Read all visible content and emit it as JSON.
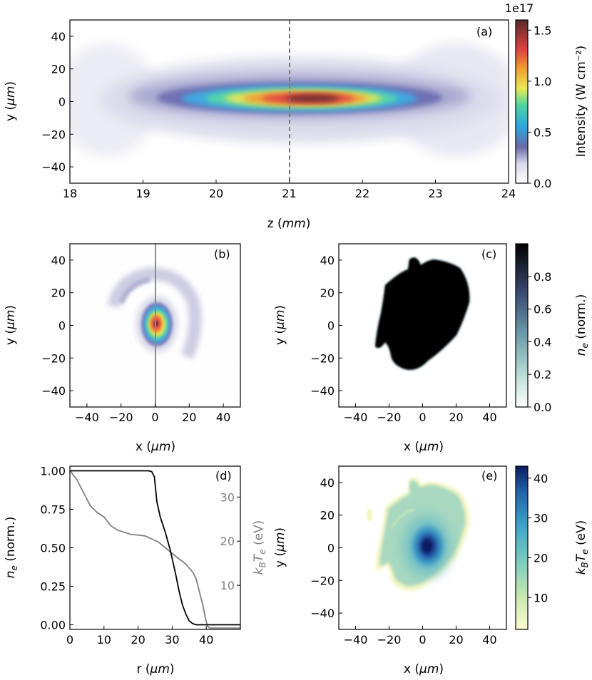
{
  "chart_data": [
    {
      "id": "a",
      "type": "heatmap",
      "panel_label": "(a)",
      "xlabel": "z",
      "xunit": "mm",
      "ylabel": "y",
      "yunit": "μm",
      "xlim": [
        18,
        24
      ],
      "ylim": [
        -50,
        50
      ],
      "xticks": [
        "18",
        "19",
        "20",
        "21",
        "22",
        "23",
        "24"
      ],
      "yticks": [
        "40",
        "20",
        "0",
        "−20",
        "−40"
      ],
      "marker_line_z": 21,
      "colorbar": {
        "label": "Intensity (W cm⁻²)",
        "exponent": "1e17",
        "range": [
          0,
          1.6
        ],
        "ticks": [
          "1.5",
          "1.0",
          "0.5",
          "0.0"
        ],
        "colors": [
          "#ffffff",
          "#6a6aa8",
          "#2aa8e0",
          "#4fd6a0",
          "#eaea50",
          "#f0a030",
          "#e04040",
          "#5a2a2a"
        ]
      },
      "peak": {
        "z": 21.25,
        "y": 0,
        "intensity": 1.55
      }
    },
    {
      "id": "b",
      "type": "heatmap",
      "panel_label": "(b)",
      "xlabel": "x",
      "xunit": "μm",
      "ylabel": "y",
      "yunit": "μm",
      "xlim": [
        -50,
        50
      ],
      "ylim": [
        -50,
        50
      ],
      "xticks": [
        "−40",
        "−20",
        "0",
        "20",
        "40"
      ],
      "yticks": [
        "40",
        "20",
        "0",
        "−20",
        "−40"
      ],
      "marker_line_x": 0,
      "peak": {
        "x": 1,
        "y": 0
      }
    },
    {
      "id": "c",
      "type": "heatmap",
      "panel_label": "(c)",
      "xlabel": "x",
      "xunit": "μm",
      "ylabel": "y",
      "yunit": "μm",
      "xlim": [
        -50,
        50
      ],
      "ylim": [
        -50,
        50
      ],
      "xticks": [
        "−40",
        "−20",
        "0",
        "20",
        "40"
      ],
      "yticks": [
        "40",
        "20",
        "0",
        "−20",
        "−40"
      ],
      "colorbar": {
        "label_main": "n",
        "label_sub": "e",
        "label_rest": " (norm.)",
        "range": [
          0,
          1
        ],
        "ticks": [
          "0.8",
          "0.6",
          "0.4",
          "0.2",
          "0.0"
        ],
        "colors": [
          "#ffffff",
          "#b8dcd6",
          "#6a9aa8",
          "#3a4a70",
          "#000000"
        ]
      }
    },
    {
      "id": "d",
      "type": "line",
      "panel_label": "(d)",
      "xlabel": "r",
      "xunit": "μm",
      "ylabel_main": "n",
      "ylabel_sub": "e",
      "ylabel_rest": " (norm.)",
      "ylabel2_main": "k",
      "ylabel2_sub": "B",
      "ylabel2_mid": "T",
      "ylabel2_sub2": "e",
      "ylabel2_rest": " (eV)",
      "xlim": [
        0,
        50
      ],
      "ylim": [
        -0.03,
        1.03
      ],
      "ylim2": [
        0,
        37
      ],
      "xticks": [
        "0",
        "10",
        "20",
        "30",
        "40"
      ],
      "yticks": [
        "1.00",
        "0.75",
        "0.50",
        "0.25",
        "0.00"
      ],
      "yticks2": [
        "30",
        "20",
        "10"
      ],
      "series": [
        {
          "name": "n_e",
          "color": "#000000",
          "axis": "left",
          "x": [
            0,
            23,
            24,
            24.8,
            25.5,
            26.5,
            28,
            29.5,
            31,
            32,
            33,
            34,
            35,
            36,
            37,
            39,
            41,
            50
          ],
          "y": [
            1.0,
            1.0,
            0.995,
            0.96,
            0.8,
            0.7,
            0.6,
            0.48,
            0.33,
            0.22,
            0.13,
            0.07,
            0.025,
            0.008,
            0.0,
            0.0,
            0.0,
            0.0
          ]
        },
        {
          "name": "k_BT_e",
          "color": "#808080",
          "axis": "right",
          "x": [
            0,
            2,
            4,
            6,
            8,
            10,
            12,
            14,
            16,
            18,
            20,
            22,
            24,
            26,
            28,
            30,
            32,
            34,
            36,
            37,
            38,
            39,
            39.5,
            40,
            40.5,
            41,
            50
          ],
          "y": [
            36,
            34,
            31,
            28,
            26.5,
            25.5,
            23.5,
            22.5,
            22,
            21.5,
            21.4,
            21.2,
            20.5,
            19.8,
            18.5,
            17.2,
            16,
            14.8,
            13,
            11.5,
            8.5,
            5.5,
            3.5,
            1.8,
            0.6,
            0.3,
            0.3
          ]
        }
      ]
    },
    {
      "id": "e",
      "type": "heatmap",
      "panel_label": "(e)",
      "xlabel": "x",
      "xunit": "μm",
      "ylabel": "y",
      "yunit": "μm",
      "xlim": [
        -50,
        50
      ],
      "ylim": [
        -50,
        50
      ],
      "xticks": [
        "−40",
        "−20",
        "0",
        "20",
        "40"
      ],
      "yticks": [
        "40",
        "20",
        "0",
        "−20",
        "−40"
      ],
      "colorbar": {
        "label_main": "k",
        "label_sub": "B",
        "label_mid": "T",
        "label_sub2": "e",
        "label_rest": " (eV)",
        "range": [
          2,
          43
        ],
        "ticks": [
          "40",
          "30",
          "20",
          "10"
        ],
        "colors": [
          "#fdfdd0",
          "#c8e8b0",
          "#70c8c0",
          "#3aa0c8",
          "#2060a8",
          "#0a1a60"
        ]
      }
    }
  ]
}
